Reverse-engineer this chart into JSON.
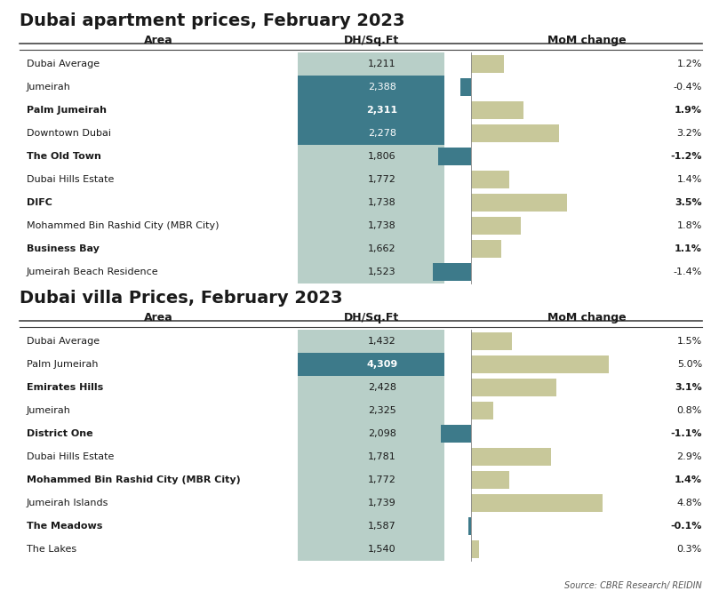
{
  "apt_title": "Dubai apartment prices, February 2023",
  "villa_title": "Dubai villa Prices, February 2023",
  "source_text": "Source: CBRE Research/ REIDIN",
  "col_area": "Area",
  "col_price": "DH/Sq.Ft",
  "col_mom": "MoM change",
  "apt_areas": [
    "Dubai Average",
    "Jumeirah",
    "Palm Jumeirah",
    "Downtown Dubai",
    "The Old Town",
    "Dubai Hills Estate",
    "DIFC",
    "Mohammed Bin Rashid City (MBR City)",
    "Business Bay",
    "Jumeirah Beach Residence"
  ],
  "apt_bold": [
    false,
    false,
    true,
    false,
    true,
    false,
    true,
    false,
    true,
    false
  ],
  "apt_prices": [
    1211,
    2388,
    2311,
    2278,
    1806,
    1772,
    1738,
    1738,
    1662,
    1523
  ],
  "apt_mom": [
    1.2,
    -0.4,
    1.9,
    3.2,
    -1.2,
    1.4,
    3.5,
    1.8,
    1.1,
    -1.4
  ],
  "apt_price_colors": [
    "#b8cfc8",
    "#3d7a8a",
    "#3d7a8a",
    "#3d7a8a",
    "#b8cfc8",
    "#b8cfc8",
    "#b8cfc8",
    "#b8cfc8",
    "#b8cfc8",
    "#b8cfc8"
  ],
  "apt_price_text_colors": [
    "#1a1a1a",
    "#ffffff",
    "#ffffff",
    "#ffffff",
    "#1a1a1a",
    "#1a1a1a",
    "#1a1a1a",
    "#1a1a1a",
    "#1a1a1a",
    "#1a1a1a"
  ],
  "apt_price_bold": [
    false,
    false,
    true,
    false,
    false,
    false,
    false,
    false,
    false,
    false
  ],
  "villa_areas": [
    "Dubai Average",
    "Palm Jumeirah",
    "Emirates Hills",
    "Jumeirah",
    "District One",
    "Dubai Hills Estate",
    "Mohammed Bin Rashid City (MBR City)",
    "Jumeirah Islands",
    "The Meadows",
    "The Lakes"
  ],
  "villa_bold": [
    false,
    false,
    true,
    false,
    true,
    false,
    true,
    false,
    true,
    false
  ],
  "villa_prices": [
    1432,
    4309,
    2428,
    2325,
    2098,
    1781,
    1772,
    1739,
    1587,
    1540
  ],
  "villa_mom": [
    1.5,
    5.0,
    3.1,
    0.8,
    -1.1,
    2.9,
    1.4,
    4.8,
    -0.1,
    0.3
  ],
  "villa_price_colors": [
    "#b8cfc8",
    "#3d7a8a",
    "#b8cfc8",
    "#b8cfc8",
    "#b8cfc8",
    "#b8cfc8",
    "#b8cfc8",
    "#b8cfc8",
    "#b8cfc8",
    "#b8cfc8"
  ],
  "villa_price_text_colors": [
    "#1a1a1a",
    "#ffffff",
    "#1a1a1a",
    "#1a1a1a",
    "#1a1a1a",
    "#1a1a1a",
    "#1a1a1a",
    "#1a1a1a",
    "#1a1a1a",
    "#1a1a1a"
  ],
  "villa_price_bold": [
    false,
    true,
    false,
    false,
    false,
    false,
    false,
    false,
    false,
    false
  ],
  "color_positive_bar": "#c8c89a",
  "color_negative_bar": "#3d7a8a",
  "bg_color": "#ffffff",
  "mom_max": 5.5
}
